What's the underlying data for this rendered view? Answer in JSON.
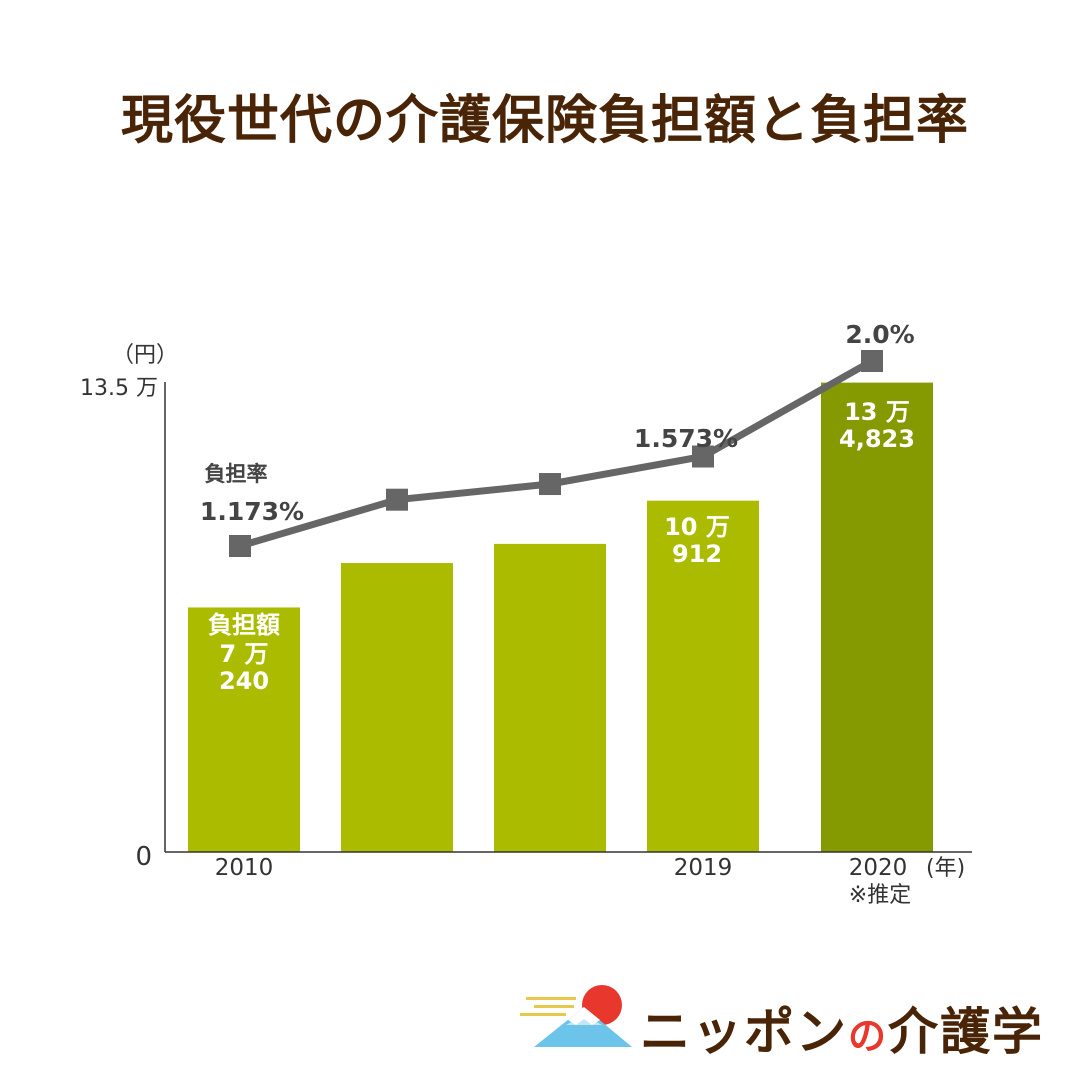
{
  "title": "現役世代の介護保険負担額と負担率",
  "logo": {
    "part1": "ニッポン",
    "part2": "の",
    "part3": "介護学"
  },
  "chart_data": {
    "type": "bar",
    "unit_y": "（円）",
    "unit_x": "(年)",
    "ylim": [
      0,
      135000
    ],
    "y_tick_labels": {
      "top": "13.5 万",
      "zero": "0"
    },
    "x_labels": [
      "2010",
      "",
      "",
      "2019",
      "2020"
    ],
    "x_note": "※推定",
    "values": [
      70240,
      83000,
      88500,
      100912,
      134823
    ],
    "bar_colors": [
      "#aabb00",
      "#aabb00",
      "#aabb00",
      "#aabb00",
      "#859900"
    ],
    "bar_labels": [
      [
        "負担額",
        "7 万",
        "240"
      ],
      [],
      [],
      [
        "10 万",
        "912"
      ],
      [
        "13 万",
        "4,823"
      ]
    ],
    "rate_series": {
      "name": "負担率",
      "values": [
        1.173,
        1.38,
        1.45,
        1.573,
        2.0
      ],
      "labels": [
        "1.173%",
        "",
        "",
        "1.573%",
        "2.0%"
      ],
      "line_color": "#666666"
    }
  }
}
